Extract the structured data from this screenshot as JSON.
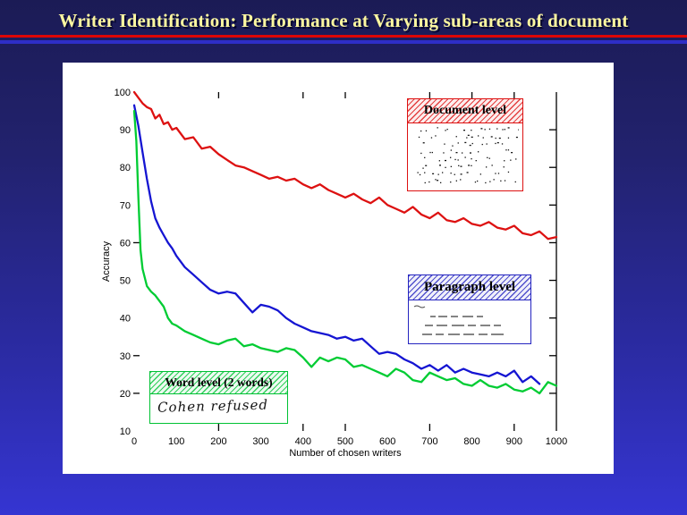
{
  "slide": {
    "title": "Writer Identification: Performance at Varying sub-areas of document",
    "colors": {
      "background_top": "#1b1b55",
      "background_bottom": "#3535d2",
      "title_text": "#fcf7a0",
      "rule_red": "#dd0606",
      "rule_blue": "#2e2ec6",
      "panel": "#ffffff"
    }
  },
  "chart_data": {
    "type": "line",
    "title": "",
    "xlabel": "Number of chosen writers",
    "ylabel": "Accuracy",
    "xlim": [
      0,
      1000
    ],
    "ylim": [
      10,
      100
    ],
    "grid": false,
    "legend_position": "annotation boxes on plot",
    "xticks": [
      0,
      100,
      200,
      300,
      400,
      500,
      600,
      700,
      800,
      900,
      1000
    ],
    "yticks": [
      10,
      20,
      30,
      40,
      50,
      60,
      70,
      80,
      90,
      100
    ],
    "xticks_top_marks": [
      200,
      400,
      500,
      700,
      800,
      900
    ],
    "xticks_bottom_marks": [
      200,
      400,
      500,
      700,
      900
    ],
    "yticks_left_dash": [
      20,
      30,
      60
    ],
    "yticks_right_marks": [
      20,
      30,
      40,
      50,
      60,
      70,
      80,
      90
    ],
    "series": [
      {
        "name": "Document level",
        "color": "#dd1111",
        "x": [
          0,
          10,
          20,
          30,
          40,
          50,
          60,
          70,
          80,
          90,
          100,
          120,
          140,
          160,
          180,
          200,
          220,
          240,
          260,
          280,
          300,
          320,
          340,
          360,
          380,
          400,
          420,
          440,
          460,
          480,
          500,
          520,
          540,
          560,
          580,
          600,
          620,
          640,
          660,
          680,
          700,
          720,
          740,
          760,
          780,
          800,
          820,
          840,
          860,
          880,
          900,
          920,
          940,
          960,
          980,
          1000
        ],
        "y": [
          100,
          98.5,
          97,
          96,
          95.5,
          93,
          94,
          91.5,
          92,
          90,
          90.5,
          87.5,
          88,
          85,
          85.5,
          83.5,
          82,
          80.5,
          80,
          79,
          78,
          77,
          77.5,
          76.5,
          77,
          75.5,
          74.5,
          75.5,
          74,
          73,
          72,
          73,
          71.5,
          70.5,
          72,
          70,
          69,
          68,
          69.5,
          67.5,
          66.5,
          68,
          66,
          65.5,
          66.5,
          65,
          64.5,
          65.5,
          64,
          63.5,
          64.5,
          62.5,
          62,
          63,
          61,
          61.5
        ]
      },
      {
        "name": "Paragraph level",
        "color": "#1515d2",
        "x": [
          0,
          10,
          20,
          30,
          40,
          50,
          60,
          70,
          80,
          90,
          100,
          120,
          140,
          160,
          180,
          200,
          220,
          240,
          260,
          280,
          300,
          320,
          340,
          360,
          380,
          400,
          420,
          440,
          460,
          480,
          500,
          520,
          540,
          560,
          580,
          600,
          620,
          640,
          660,
          680,
          700,
          720,
          740,
          760,
          780,
          800,
          820,
          840,
          860,
          880,
          900,
          920,
          940,
          960
        ],
        "y": [
          96.5,
          91,
          84,
          77,
          71,
          66.5,
          64,
          62,
          60,
          58.5,
          56.5,
          53.5,
          51.5,
          49.5,
          47.5,
          46.5,
          47,
          46.5,
          44,
          41.5,
          43.5,
          43,
          42,
          40,
          38.5,
          37.5,
          36.5,
          36,
          35.5,
          34.5,
          35,
          34,
          34.5,
          32.5,
          30.5,
          31,
          30.5,
          29,
          28,
          26.5,
          27.5,
          26,
          27.5,
          25.5,
          26.5,
          25.5,
          25,
          24.5,
          25.5,
          24.5,
          26,
          23,
          24.5,
          22.5
        ]
      },
      {
        "name": "Word level (2 words)",
        "color": "#00cc33",
        "x": [
          0,
          5,
          10,
          15,
          20,
          30,
          40,
          50,
          60,
          70,
          80,
          90,
          100,
          120,
          140,
          160,
          180,
          200,
          220,
          240,
          260,
          280,
          300,
          320,
          340,
          360,
          380,
          400,
          420,
          440,
          460,
          480,
          500,
          520,
          540,
          560,
          580,
          600,
          620,
          640,
          660,
          680,
          700,
          720,
          740,
          760,
          780,
          800,
          820,
          840,
          860,
          880,
          900,
          920,
          940,
          960,
          980,
          1000
        ],
        "y": [
          95,
          87,
          72,
          58,
          53,
          48.5,
          47,
          46,
          44.5,
          43,
          40,
          38.5,
          38,
          36.5,
          35.5,
          34.5,
          33.5,
          33,
          34,
          34.5,
          32.5,
          33,
          32,
          31.5,
          31,
          32,
          31.5,
          29.5,
          27,
          29.5,
          28.5,
          29.5,
          29,
          27,
          27.5,
          26.5,
          25.5,
          24.5,
          26.5,
          25.5,
          23.5,
          23,
          25.5,
          24.5,
          23.5,
          24,
          22.5,
          22,
          23.5,
          22,
          21.5,
          22.5,
          21,
          20.5,
          21.5,
          20,
          23,
          22
        ]
      }
    ]
  },
  "annotations": {
    "document_box": {
      "label": "Document level",
      "color": "#dd1111"
    },
    "paragraph_box": {
      "label": "Paragraph level",
      "color": "#2424c0"
    },
    "word_box": {
      "label": "Word level (2 words)",
      "color": "#00c234",
      "handwriting": "Cohen refused"
    }
  }
}
